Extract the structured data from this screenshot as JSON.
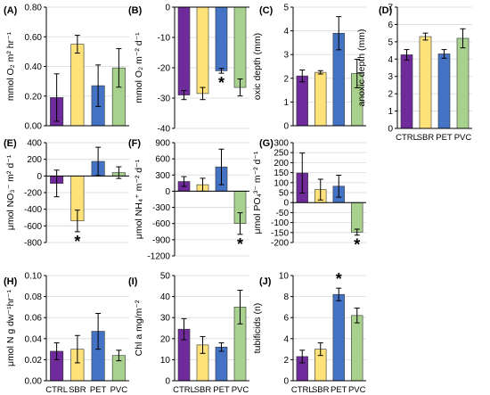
{
  "colors": {
    "CTRL": "#6f2a9b",
    "SBR": "#ffe27a",
    "PET": "#4472c4",
    "PVC": "#a9d18e",
    "axis": "#000000",
    "grid": "#d9d9d9"
  },
  "chart_data": [
    {
      "type": "bar",
      "panel": "(A)",
      "ylabel": "mmol O₂ m² hr⁻¹",
      "ylim": [
        0,
        0.8
      ],
      "yticks": [
        "0.00",
        "0.20",
        "0.40",
        "0.60",
        "0.80"
      ],
      "grid": true,
      "x_tick_labels": false,
      "categories": [
        "CTRL",
        "SBR",
        "PET",
        "PVC"
      ],
      "values": [
        0.19,
        0.55,
        0.27,
        0.39
      ],
      "errors": [
        0.16,
        0.06,
        0.14,
        0.13
      ],
      "significant": []
    },
    {
      "type": "bar",
      "panel": "(B)",
      "ylabel": "mmol O₂ m⁻² d⁻¹",
      "ylim": [
        -40,
        0
      ],
      "yticks": [
        "-40",
        "-30",
        "-20",
        "-10",
        "0"
      ],
      "grid": true,
      "x_tick_labels": false,
      "categories": [
        "CTRL",
        "SBR",
        "PET",
        "PVC"
      ],
      "values": [
        -29,
        -28.5,
        -21,
        -26.5
      ],
      "errors": [
        1.5,
        2,
        0.8,
        2.8
      ],
      "significant": [
        "PET"
      ]
    },
    {
      "type": "bar",
      "panel": "(C)",
      "ylabel": "oxic depth (mm)",
      "ylim": [
        0,
        5
      ],
      "yticks": [
        "0",
        "1",
        "2",
        "3",
        "4",
        "5"
      ],
      "grid": true,
      "x_tick_labels": false,
      "categories": [
        "CTRL",
        "SBR",
        "PET",
        "PVC"
      ],
      "values": [
        2.1,
        2.25,
        3.9,
        2.2
      ],
      "errors": [
        0.25,
        0.07,
        0.7,
        0.6
      ],
      "significant": []
    },
    {
      "type": "bar",
      "panel": "(D)",
      "ylabel": "anoxic depth (mm)",
      "ylim": [
        0,
        7
      ],
      "yticks": [
        "0",
        "1",
        "2",
        "3",
        "4",
        "5",
        "6",
        "7"
      ],
      "grid": true,
      "x_tick_labels": true,
      "categories": [
        "CTRL",
        "SBR",
        "PET",
        "PVC"
      ],
      "values": [
        4.25,
        5.3,
        4.3,
        5.2
      ],
      "errors": [
        0.3,
        0.2,
        0.25,
        0.55
      ],
      "significant": []
    },
    {
      "type": "bar",
      "panel": "(E)",
      "ylabel": "μmol NO₃⁻ m² d⁻¹",
      "ylim": [
        -800,
        400
      ],
      "yticks": [
        "-800",
        "-600",
        "-400",
        "-200",
        "0",
        "200",
        "400"
      ],
      "grid": true,
      "x_tick_labels": false,
      "categories": [
        "CTRL",
        "SBR",
        "PET",
        "PVC"
      ],
      "values": [
        -90,
        -540,
        175,
        40
      ],
      "errors": [
        160,
        130,
        170,
        70
      ],
      "significant": [
        "SBR"
      ]
    },
    {
      "type": "bar",
      "panel": "(F)",
      "ylabel": "μmol NH₄⁺ m⁻² d⁻¹",
      "ylim": [
        -1200,
        900
      ],
      "yticks": [
        "-1200",
        "-900",
        "-600",
        "-300",
        "0",
        "300",
        "600",
        "900"
      ],
      "grid": true,
      "x_tick_labels": false,
      "categories": [
        "CTRL",
        "SBR",
        "PET",
        "PVC"
      ],
      "values": [
        180,
        120,
        450,
        -600
      ],
      "errors": [
        90,
        120,
        330,
        200
      ],
      "significant": [
        "PVC"
      ]
    },
    {
      "type": "bar",
      "panel": "(G)",
      "ylabel": "μmol PO₄³⁻ m⁻² d⁻¹",
      "ylim": [
        -200,
        300
      ],
      "yticks": [
        "-200",
        "-150",
        "-100",
        "-50",
        "0",
        "50",
        "100",
        "150",
        "200",
        "250",
        "300"
      ],
      "grid": true,
      "x_tick_labels": false,
      "categories": [
        "CTRL",
        "SBR",
        "PET",
        "PVC"
      ],
      "values": [
        148,
        65,
        82,
        -148
      ],
      "errors": [
        100,
        52,
        55,
        15
      ],
      "significant": [
        "PVC"
      ]
    },
    {
      "type": "bar",
      "panel": "(H)",
      "ylabel": "μmol N g dw⁻¹hr⁻¹",
      "ylim": [
        0,
        0.1
      ],
      "yticks": [
        "0.00",
        "0.02",
        "0.04",
        "0.06",
        "0.08",
        "0.10"
      ],
      "grid": true,
      "x_tick_labels": true,
      "categories": [
        "CTRL",
        "SBR",
        "PET",
        "PVC"
      ],
      "values": [
        0.028,
        0.03,
        0.047,
        0.024
      ],
      "errors": [
        0.008,
        0.013,
        0.017,
        0.005
      ],
      "significant": []
    },
    {
      "type": "bar",
      "panel": "(I)",
      "ylabel": "Chl a mg/m⁻²",
      "ylim": [
        0,
        50
      ],
      "yticks": [
        "0",
        "10",
        "20",
        "30",
        "40",
        "50"
      ],
      "grid": true,
      "x_tick_labels": true,
      "categories": [
        "CTRL",
        "SBR",
        "PET",
        "PVC"
      ],
      "values": [
        24.5,
        17,
        16,
        35
      ],
      "errors": [
        5,
        4,
        2,
        8
      ],
      "significant": []
    },
    {
      "type": "bar",
      "panel": "(J)",
      "ylabel": "tubificids (n)",
      "ylim": [
        0,
        10
      ],
      "yticks": [
        "0",
        "2",
        "4",
        "6",
        "8",
        "10"
      ],
      "grid": true,
      "x_tick_labels": true,
      "categories": [
        "CTRL",
        "SBR",
        "PET",
        "PVC"
      ],
      "values": [
        2.3,
        3,
        8.2,
        6.2
      ],
      "errors": [
        0.6,
        0.6,
        0.6,
        0.7
      ],
      "significant": [
        "PET"
      ]
    }
  ]
}
